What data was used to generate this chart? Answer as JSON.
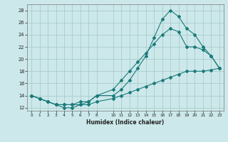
{
  "xlabel": "Humidex (Indice chaleur)",
  "bg_color": "#cce8ea",
  "grid_color": "#aacccc",
  "line_color": "#1a7a7a",
  "xlim_min": -0.5,
  "xlim_max": 23.5,
  "ylim_min": 11.5,
  "ylim_max": 29,
  "xtick_vals": [
    0,
    1,
    2,
    3,
    4,
    5,
    6,
    7,
    8,
    10,
    11,
    12,
    13,
    14,
    15,
    16,
    17,
    18,
    19,
    20,
    21,
    22,
    23
  ],
  "ytick_vals": [
    12,
    14,
    16,
    18,
    20,
    22,
    24,
    26,
    28
  ],
  "line1_x": [
    0,
    1,
    2,
    3,
    4,
    5,
    6,
    7,
    8,
    10,
    11,
    12,
    13,
    14,
    15,
    16,
    17,
    18,
    19,
    20,
    21,
    22,
    23
  ],
  "line1_y": [
    14,
    13.5,
    13,
    12.5,
    12.5,
    12.5,
    12.5,
    12.5,
    13,
    13.5,
    14,
    14.5,
    15,
    15.5,
    16,
    16.5,
    17,
    17.5,
    18,
    18,
    18,
    18.2,
    18.5
  ],
  "line2_x": [
    0,
    1,
    2,
    3,
    4,
    5,
    6,
    7,
    8,
    10,
    11,
    12,
    13,
    14,
    15,
    16,
    17,
    18,
    19,
    20,
    21,
    22,
    23
  ],
  "line2_y": [
    14,
    13.5,
    13,
    12.5,
    12.5,
    12.5,
    13,
    13,
    14,
    15,
    16.5,
    18,
    19.5,
    21,
    22.5,
    24,
    25,
    24.5,
    22,
    22,
    21.5,
    20.5,
    18.5
  ],
  "line3_x": [
    0,
    1,
    2,
    3,
    4,
    5,
    6,
    7,
    8,
    10,
    11,
    12,
    13,
    14,
    15,
    16,
    17,
    18,
    19,
    20,
    21,
    22,
    23
  ],
  "line3_y": [
    14,
    13.5,
    13,
    12.5,
    12,
    12,
    12.5,
    13,
    14,
    14,
    15,
    16.5,
    18.5,
    20.5,
    23.5,
    26.5,
    28,
    27,
    25,
    24,
    22,
    20.5,
    18.5
  ]
}
